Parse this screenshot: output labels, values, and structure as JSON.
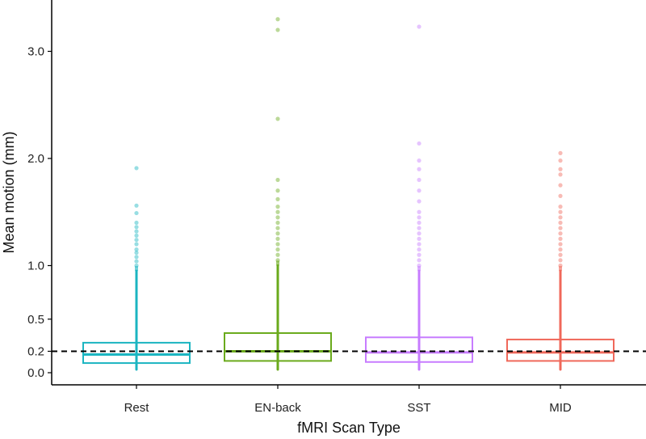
{
  "chart_data": {
    "type": "box",
    "title": "",
    "xlabel": "fMRI Scan Type",
    "ylabel": "Mean motion (mm)",
    "categories": [
      "Rest",
      "EN-back",
      "SST",
      "MID"
    ],
    "ylim": [
      -0.05,
      3.45
    ],
    "yticks": [
      0.0,
      0.2,
      0.5,
      1.0,
      2.0,
      3.0
    ],
    "ytick_labels": [
      "0.0",
      "0.2",
      "0.5",
      "1.0",
      "2.0",
      "3.0"
    ],
    "reference_line": {
      "y": 0.2,
      "style": "dashed",
      "color": "#000000"
    },
    "grid": false,
    "legend": "none",
    "series": [
      {
        "category": "Rest",
        "color": "#1BB5C1",
        "q1": 0.09,
        "median": 0.17,
        "q3": 0.28,
        "min": 0.03,
        "max": 0.95,
        "outliers": [
          1.0,
          1.04,
          1.08,
          1.12,
          1.15,
          1.2,
          1.24,
          1.28,
          1.32,
          1.36,
          1.4,
          1.49,
          1.56,
          1.91
        ]
      },
      {
        "category": "EN-back",
        "color": "#6AAA1C",
        "q1": 0.11,
        "median": 0.2,
        "q3": 0.37,
        "min": 0.03,
        "max": 1.0,
        "outliers": [
          1.05,
          1.1,
          1.15,
          1.2,
          1.25,
          1.3,
          1.35,
          1.4,
          1.45,
          1.5,
          1.55,
          1.62,
          1.7,
          1.8,
          2.37,
          3.2,
          3.3
        ]
      },
      {
        "category": "SST",
        "color": "#C77CFF",
        "q1": 0.1,
        "median": 0.19,
        "q3": 0.33,
        "min": 0.03,
        "max": 0.95,
        "outliers": [
          1.0,
          1.05,
          1.1,
          1.15,
          1.2,
          1.25,
          1.3,
          1.35,
          1.4,
          1.45,
          1.5,
          1.6,
          1.7,
          1.8,
          1.9,
          1.98,
          2.14,
          3.23
        ]
      },
      {
        "category": "MID",
        "color": "#F0685A",
        "q1": 0.11,
        "median": 0.19,
        "q3": 0.31,
        "min": 0.03,
        "max": 0.95,
        "outliers": [
          1.0,
          1.05,
          1.1,
          1.15,
          1.2,
          1.25,
          1.3,
          1.35,
          1.4,
          1.45,
          1.5,
          1.55,
          1.65,
          1.75,
          1.85,
          1.9,
          1.98,
          2.05
        ]
      }
    ]
  }
}
